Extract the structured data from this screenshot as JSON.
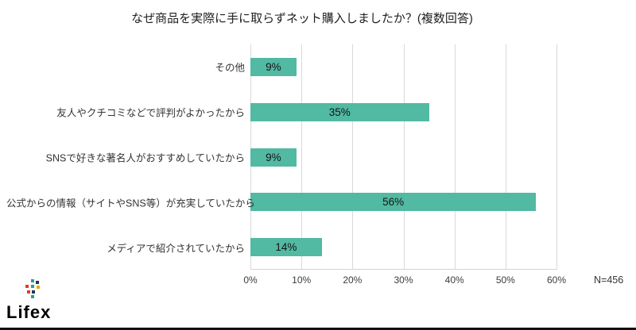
{
  "chart": {
    "sample_note": "N=456"
  },
  "chart_data": {
    "type": "bar",
    "orientation": "horizontal",
    "title": "なぜ商品を実際に手に取らずネット購入しましたか？(複数回答)",
    "categories": [
      "その他",
      "友人やクチコミなどで評判がよかったから",
      "SNSで好きな著名人がおすすめしていたから",
      "公式からの情報（サイトやSNS等）が充実していたから",
      "メディアで紹介されていたから"
    ],
    "values": [
      9,
      35,
      9,
      56,
      14
    ],
    "value_labels": [
      "9%",
      "35%",
      "9%",
      "56%",
      "14%"
    ],
    "xlabel": "",
    "ylabel": "",
    "xlim": [
      0,
      60
    ],
    "x_ticks": [
      "0%",
      "10%",
      "20%",
      "30%",
      "40%",
      "50%",
      "60%"
    ],
    "x_tick_values": [
      0,
      10,
      20,
      30,
      40,
      50,
      60
    ],
    "grid": true,
    "legend": "none"
  },
  "colors": {
    "bar": "#52b9a2",
    "gridline": "#d9d9d9",
    "title_text": "#1f1f1f",
    "footer_line": "#101010"
  },
  "footer": {
    "logo_text": "Lifex"
  }
}
